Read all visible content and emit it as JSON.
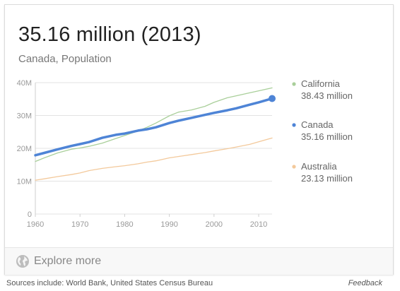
{
  "header": {
    "headline": "35.16 million (2013)",
    "subhead": "Canada, Population"
  },
  "explore_label": "Explore more",
  "footer": {
    "sources": "Sources include: World Bank, United States Census Bureau",
    "feedback": "Feedback"
  },
  "colors": {
    "california": "#a9cf9a",
    "canada": "#4e84d6",
    "australia": "#f3c99b",
    "grid": "#e3e3e3",
    "axis_text": "#999999"
  },
  "chart_data": {
    "type": "line",
    "title": "",
    "xlabel": "",
    "ylabel": "",
    "xlim": [
      1960,
      2013
    ],
    "ylim": [
      0,
      40
    ],
    "grid": true,
    "legend_position": "right",
    "x_ticks": [
      1960,
      1970,
      1980,
      1990,
      2000,
      2010
    ],
    "y_ticks": [
      {
        "value": 0,
        "label": "0"
      },
      {
        "value": 10,
        "label": "10M"
      },
      {
        "value": 20,
        "label": "20M"
      },
      {
        "value": 30,
        "label": "30M"
      },
      {
        "value": 40,
        "label": "40M"
      }
    ],
    "series": [
      {
        "name": "California",
        "value_label": "38.43 million",
        "x": [
          1960,
          1962,
          1965,
          1968,
          1970,
          1972,
          1975,
          1978,
          1980,
          1983,
          1985,
          1987,
          1990,
          1992,
          1995,
          1998,
          2000,
          2003,
          2005,
          2008,
          2010,
          2013
        ],
        "y": [
          16.0,
          17.1,
          18.6,
          19.7,
          20.1,
          20.6,
          21.6,
          23.0,
          23.9,
          25.3,
          26.4,
          27.7,
          29.9,
          31.0,
          31.7,
          32.8,
          34.0,
          35.4,
          36.0,
          36.9,
          37.5,
          38.4
        ]
      },
      {
        "name": "Canada",
        "value_label": "35.16 million",
        "x": [
          1960,
          1962,
          1965,
          1968,
          1970,
          1972,
          1975,
          1978,
          1980,
          1983,
          1985,
          1987,
          1990,
          1992,
          1995,
          1998,
          2000,
          2003,
          2005,
          2008,
          2010,
          2013
        ],
        "y": [
          17.9,
          18.6,
          19.7,
          20.7,
          21.3,
          21.9,
          23.2,
          24.1,
          24.5,
          25.4,
          25.8,
          26.4,
          27.7,
          28.4,
          29.3,
          30.2,
          30.8,
          31.6,
          32.2,
          33.3,
          34.0,
          35.16
        ]
      },
      {
        "name": "Australia",
        "value_label": "23.13 million",
        "x": [
          1960,
          1962,
          1965,
          1968,
          1970,
          1972,
          1975,
          1978,
          1980,
          1983,
          1985,
          1987,
          1990,
          1992,
          1995,
          1998,
          2000,
          2003,
          2005,
          2008,
          2010,
          2013
        ],
        "y": [
          10.3,
          10.7,
          11.4,
          12.0,
          12.5,
          13.2,
          13.9,
          14.4,
          14.7,
          15.3,
          15.8,
          16.2,
          17.1,
          17.5,
          18.1,
          18.7,
          19.2,
          19.9,
          20.4,
          21.2,
          22.0,
          23.13
        ]
      }
    ]
  }
}
